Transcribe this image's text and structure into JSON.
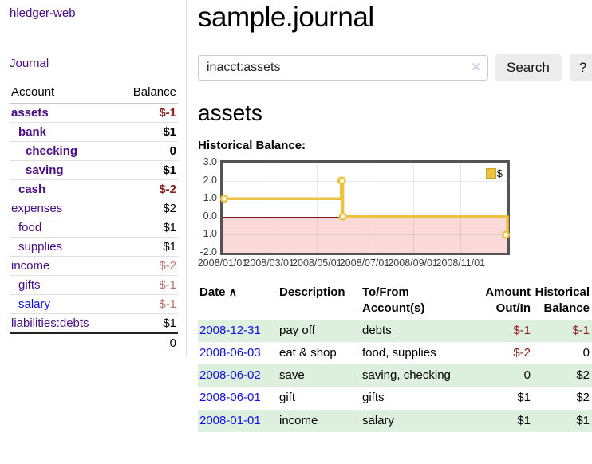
{
  "colors": {
    "link_purple": "#4b0d86",
    "link_blue": "#0f0fe8",
    "negative_strong": "#8b1a1a",
    "negative_soft": "#bb7272",
    "row_shade_green": "#ddefdd",
    "chart_line": "#edc240",
    "chart_negative_region": "#fbd9d9",
    "chart_zero_line": "#8b0000",
    "chart_border": "#545454"
  },
  "sidebar": {
    "app_title": "hledger-web",
    "journal_label": "Journal",
    "account_header": "Account",
    "balance_header": "Balance",
    "accounts": [
      {
        "name": "assets",
        "indent": 0,
        "bold": true,
        "link_color": "purple",
        "balance": "$-1",
        "balance_tone": "neg-strong"
      },
      {
        "name": "bank",
        "indent": 1,
        "bold": true,
        "link_color": "purple",
        "balance": "$1",
        "balance_tone": ""
      },
      {
        "name": "checking",
        "indent": 2,
        "bold": true,
        "link_color": "purple",
        "balance": "0",
        "balance_tone": ""
      },
      {
        "name": "saving",
        "indent": 2,
        "bold": true,
        "link_color": "purple",
        "balance": "$1",
        "balance_tone": ""
      },
      {
        "name": "cash",
        "indent": 1,
        "bold": true,
        "link_color": "purple",
        "balance": "$-2",
        "balance_tone": "neg-strong"
      },
      {
        "name": "expenses",
        "indent": 0,
        "bold": false,
        "link_color": "purple",
        "balance": "$2",
        "balance_tone": ""
      },
      {
        "name": "food",
        "indent": 1,
        "bold": false,
        "link_color": "purple",
        "balance": "$1",
        "balance_tone": ""
      },
      {
        "name": "supplies",
        "indent": 1,
        "bold": false,
        "link_color": "purple",
        "balance": "$1",
        "balance_tone": ""
      },
      {
        "name": "income",
        "indent": 0,
        "bold": false,
        "link_color": "purple",
        "balance": "$-2",
        "balance_tone": "neg-soft"
      },
      {
        "name": "gifts",
        "indent": 1,
        "bold": false,
        "link_color": "purple",
        "balance": "$-1",
        "balance_tone": "neg-soft"
      },
      {
        "name": "salary",
        "indent": 1,
        "bold": false,
        "link_color": "blue",
        "balance": "$-1",
        "balance_tone": "neg-soft"
      },
      {
        "name": "liabilities:debts",
        "indent": 0,
        "bold": false,
        "link_color": "purple",
        "balance": "$1",
        "balance_tone": ""
      }
    ],
    "total": "0"
  },
  "header": {
    "title": "sample.journal"
  },
  "search": {
    "value": "inacct:assets",
    "clear_icon": "✕",
    "button_label": "Search",
    "help_label": "?"
  },
  "account_page": {
    "title": "assets",
    "chart_label": "Historical Balance:"
  },
  "chart_data": {
    "type": "line",
    "step": true,
    "legend": [
      {
        "label": "$",
        "color": "#edc240"
      }
    ],
    "xmin": "2008-01-01",
    "xmax": "2008-12-31",
    "ylim": [
      -2,
      3
    ],
    "y_ticks": [
      {
        "v": 3,
        "label": "3.0"
      },
      {
        "v": 2,
        "label": "2.0"
      },
      {
        "v": 1,
        "label": "1.0"
      },
      {
        "v": 0,
        "label": "0.0"
      },
      {
        "v": -1,
        "label": "-1.0"
      },
      {
        "v": -2,
        "label": "-2.0"
      }
    ],
    "x_ticks": [
      {
        "date": "2008-01-01",
        "label": "2008/01/01"
      },
      {
        "date": "2008-03-01",
        "label": "2008/03/01"
      },
      {
        "date": "2008-05-01",
        "label": "2008/05/01"
      },
      {
        "date": "2008-07-01",
        "label": "2008/07/01"
      },
      {
        "date": "2008-09-01",
        "label": "2008/09/01"
      },
      {
        "date": "2008-11-01",
        "label": "2008/11/01"
      }
    ],
    "series": [
      {
        "name": "$",
        "color": "#edc240",
        "points": [
          {
            "date": "2008-01-01",
            "value": 1
          },
          {
            "date": "2008-06-01",
            "value": 2
          },
          {
            "date": "2008-06-02",
            "value": 2
          },
          {
            "date": "2008-06-03",
            "value": 0
          },
          {
            "date": "2008-12-31",
            "value": -1
          }
        ]
      }
    ],
    "negative_region": true,
    "grid": true,
    "legend_position": "top-right"
  },
  "register": {
    "headers": {
      "date": "Date",
      "sort_indicator": "∧",
      "description": "Description",
      "accounts": "To/From Account(s)",
      "amount": "Amount Out/In",
      "balance": "Historical Balance"
    },
    "rows": [
      {
        "date": "2008-12-31",
        "description": "pay off",
        "accounts": "debts",
        "amount": "$-1",
        "amount_tone": "neg-strong",
        "balance": "$-1",
        "balance_tone": "neg-strong",
        "shaded": true
      },
      {
        "date": "2008-06-03",
        "description": "eat & shop",
        "accounts": "food, supplies",
        "amount": "$-2",
        "amount_tone": "neg-strong",
        "balance": "0",
        "balance_tone": "",
        "shaded": false
      },
      {
        "date": "2008-06-02",
        "description": "save",
        "accounts": "saving, checking",
        "amount": "0",
        "amount_tone": "",
        "balance": "$2",
        "balance_tone": "",
        "shaded": true
      },
      {
        "date": "2008-06-01",
        "description": "gift",
        "accounts": "gifts",
        "amount": "$1",
        "amount_tone": "",
        "balance": "$2",
        "balance_tone": "",
        "shaded": false
      },
      {
        "date": "2008-01-01",
        "description": "income",
        "accounts": "salary",
        "amount": "$1",
        "amount_tone": "",
        "balance": "$1",
        "balance_tone": "",
        "shaded": true
      }
    ]
  }
}
